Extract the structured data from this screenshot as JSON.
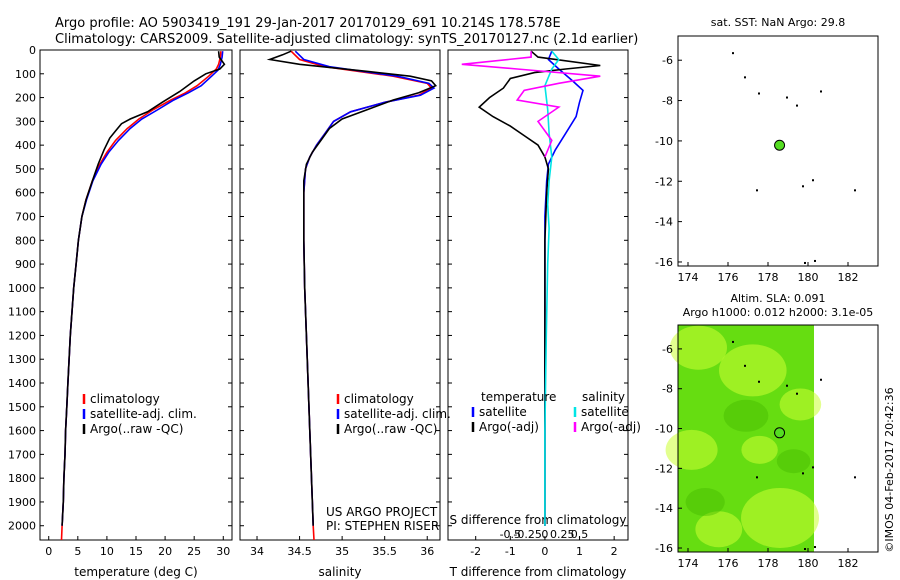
{
  "title": {
    "line1": "Argo profile: AO 5903419_191 29-Jan-2017 20170129_691 10.214S 178.578E",
    "line2": "Climatology: CARS2009. Satellite-adjusted climatology: synTS_20170127.nc (2.1d earlier)"
  },
  "colors": {
    "clim": "#ff0000",
    "sat": "#0000ff",
    "argo": "#000000",
    "sat_salt": "#00e5e5",
    "argo_salt": "#ff00ff",
    "marker": "#55dd22",
    "sla_base": "#66dd11",
    "sla_light": "#ccff33"
  },
  "stamp": "©IMOS 04-Feb-2017 20:42:36",
  "depth_axis": {
    "ticks": [
      0,
      100,
      200,
      300,
      400,
      500,
      600,
      700,
      800,
      900,
      1000,
      1100,
      1200,
      1300,
      1400,
      1500,
      1600,
      1700,
      1800,
      1900,
      2000
    ],
    "range": [
      0,
      2060
    ]
  },
  "chart_data": [
    {
      "id": "temperature",
      "type": "line",
      "xlabel": "temperature (deg C)",
      "xlim": [
        -1.5,
        31.5
      ],
      "xticks": [
        0,
        5,
        10,
        15,
        20,
        25,
        30
      ],
      "ylim": [
        0,
        2060
      ],
      "ylabel": "depth",
      "legend": [
        "climatology",
        "satellite-adj. clim.",
        "Argo(..raw -QC)"
      ],
      "series": [
        {
          "name": "climatology",
          "color": "#ff0000",
          "points": [
            [
              29.6,
              5
            ],
            [
              29.5,
              30
            ],
            [
              29.2,
              60
            ],
            [
              28.8,
              80
            ],
            [
              27.5,
              110
            ],
            [
              25.5,
              150
            ],
            [
              23.5,
              180
            ],
            [
              21.0,
              210
            ],
            [
              18.0,
              250
            ],
            [
              15.5,
              290
            ],
            [
              13.5,
              330
            ],
            [
              11.5,
              380
            ],
            [
              10.0,
              430
            ],
            [
              8.8,
              480
            ],
            [
              7.5,
              550
            ],
            [
              6.4,
              630
            ],
            [
              5.7,
              700
            ],
            [
              5.1,
              800
            ],
            [
              4.7,
              900
            ],
            [
              4.3,
              1000
            ],
            [
              4.0,
              1100
            ],
            [
              3.7,
              1200
            ],
            [
              3.5,
              1300
            ],
            [
              3.3,
              1400
            ],
            [
              3.1,
              1500
            ],
            [
              2.9,
              1600
            ],
            [
              2.8,
              1700
            ],
            [
              2.6,
              1800
            ],
            [
              2.5,
              1900
            ],
            [
              2.3,
              2000
            ],
            [
              2.2,
              2060
            ]
          ]
        },
        {
          "name": "satellite-adj. clim.",
          "color": "#0000ff",
          "points": [
            [
              29.9,
              5
            ],
            [
              29.8,
              30
            ],
            [
              29.5,
              60
            ],
            [
              29.1,
              85
            ],
            [
              28.0,
              110
            ],
            [
              26.2,
              150
            ],
            [
              24.0,
              180
            ],
            [
              21.5,
              210
            ],
            [
              18.8,
              250
            ],
            [
              16.0,
              290
            ],
            [
              14.0,
              330
            ],
            [
              12.0,
              380
            ],
            [
              10.3,
              430
            ],
            [
              9.0,
              480
            ],
            [
              7.6,
              550
            ],
            [
              6.5,
              630
            ],
            [
              5.7,
              700
            ],
            [
              5.1,
              800
            ],
            [
              4.7,
              900
            ],
            [
              4.3,
              1000
            ],
            [
              4.0,
              1100
            ],
            [
              3.7,
              1200
            ],
            [
              3.5,
              1300
            ],
            [
              3.3,
              1400
            ],
            [
              3.1,
              1500
            ],
            [
              2.9,
              1600
            ],
            [
              2.8,
              1700
            ],
            [
              2.6,
              1800
            ],
            [
              2.5,
              1900
            ],
            [
              2.3,
              2000
            ]
          ]
        },
        {
          "name": "Argo(..raw -QC)",
          "color": "#000000",
          "points": [
            [
              29.2,
              5
            ],
            [
              29.3,
              30
            ],
            [
              30.2,
              60
            ],
            [
              29.4,
              80
            ],
            [
              27.0,
              100
            ],
            [
              25.0,
              130
            ],
            [
              22.5,
              175
            ],
            [
              19.5,
              220
            ],
            [
              17.0,
              260
            ],
            [
              14.0,
              290
            ],
            [
              12.5,
              310
            ],
            [
              11.5,
              340
            ],
            [
              10.5,
              370
            ],
            [
              9.5,
              420
            ],
            [
              8.5,
              480
            ],
            [
              7.5,
              550
            ],
            [
              6.4,
              630
            ],
            [
              5.7,
              700
            ],
            [
              5.1,
              800
            ],
            [
              4.7,
              900
            ],
            [
              4.3,
              1000
            ],
            [
              4.0,
              1100
            ],
            [
              3.7,
              1200
            ],
            [
              3.5,
              1300
            ],
            [
              3.3,
              1400
            ],
            [
              3.1,
              1500
            ],
            [
              2.9,
              1600
            ],
            [
              2.8,
              1700
            ],
            [
              2.6,
              1800
            ],
            [
              2.5,
              1900
            ],
            [
              2.3,
              2000
            ]
          ]
        }
      ]
    },
    {
      "id": "salinity",
      "type": "line",
      "xlabel": "salinity",
      "xlim": [
        33.8,
        36.15
      ],
      "xticks": [
        34,
        34.5,
        35,
        35.5,
        36
      ],
      "ylim": [
        0,
        2060
      ],
      "legend": [
        "climatology",
        "satellite-adj. clim.",
        "Argo(..raw -QC)"
      ],
      "annotation": [
        "US ARGO PROJECT",
        "PI: STEPHEN RISER"
      ],
      "series": [
        {
          "name": "climatology",
          "color": "#ff0000",
          "points": [
            [
              34.4,
              5
            ],
            [
              34.5,
              40
            ],
            [
              34.8,
              70
            ],
            [
              35.6,
              110
            ],
            [
              36.0,
              140
            ],
            [
              36.05,
              160
            ],
            [
              35.9,
              190
            ],
            [
              35.5,
              220
            ],
            [
              35.1,
              260
            ],
            [
              34.9,
              300
            ],
            [
              34.8,
              350
            ],
            [
              34.7,
              400
            ],
            [
              34.62,
              450
            ],
            [
              34.57,
              500
            ],
            [
              34.55,
              600
            ],
            [
              34.55,
              800
            ],
            [
              34.56,
              1000
            ],
            [
              34.58,
              1200
            ],
            [
              34.6,
              1400
            ],
            [
              34.62,
              1600
            ],
            [
              34.64,
              1800
            ],
            [
              34.66,
              2000
            ],
            [
              34.67,
              2060
            ]
          ]
        },
        {
          "name": "satellite-adj. clim.",
          "color": "#0000ff",
          "points": [
            [
              34.45,
              5
            ],
            [
              34.55,
              40
            ],
            [
              34.85,
              70
            ],
            [
              35.65,
              110
            ],
            [
              36.02,
              140
            ],
            [
              36.08,
              160
            ],
            [
              35.92,
              190
            ],
            [
              35.5,
              220
            ],
            [
              35.1,
              260
            ],
            [
              34.9,
              300
            ],
            [
              34.8,
              350
            ],
            [
              34.7,
              400
            ],
            [
              34.62,
              450
            ],
            [
              34.57,
              500
            ],
            [
              34.55,
              600
            ],
            [
              34.55,
              800
            ],
            [
              34.56,
              1000
            ],
            [
              34.58,
              1200
            ],
            [
              34.6,
              1400
            ],
            [
              34.62,
              1600
            ],
            [
              34.64,
              1800
            ],
            [
              34.66,
              2000
            ]
          ]
        },
        {
          "name": "Argo(..raw -QC)",
          "color": "#000000",
          "points": [
            [
              34.4,
              5
            ],
            [
              34.3,
              20
            ],
            [
              34.15,
              40
            ],
            [
              34.5,
              60
            ],
            [
              35.3,
              90
            ],
            [
              35.8,
              110
            ],
            [
              36.05,
              130
            ],
            [
              36.1,
              150
            ],
            [
              35.9,
              180
            ],
            [
              35.6,
              210
            ],
            [
              35.3,
              250
            ],
            [
              35.0,
              290
            ],
            [
              34.85,
              330
            ],
            [
              34.75,
              380
            ],
            [
              34.65,
              430
            ],
            [
              34.58,
              480
            ],
            [
              34.55,
              550
            ],
            [
              34.55,
              800
            ],
            [
              34.56,
              1000
            ],
            [
              34.58,
              1200
            ],
            [
              34.6,
              1400
            ],
            [
              34.62,
              1600
            ],
            [
              34.64,
              1800
            ],
            [
              34.66,
              2000
            ]
          ]
        }
      ]
    },
    {
      "id": "differences",
      "type": "line",
      "xlabel": "T difference from climatology",
      "xlabel_top": "S difference from climatology",
      "xlim": [
        -2.8,
        2.4
      ],
      "xticks": [
        -2,
        -1,
        0,
        1,
        2
      ],
      "xticks_s": [
        -0.5,
        -0.25,
        0,
        0.25,
        0.5
      ],
      "xticks_s_labels": [
        "-0.5",
        "-0.25",
        "0",
        "0.25",
        "0.5"
      ],
      "ylim": [
        0,
        2060
      ],
      "legend_t_title": "temperature",
      "legend_s_title": "salinity",
      "legend_t": [
        "satellite",
        "Argo(-adj)"
      ],
      "legend_s": [
        "satellite",
        "Argo(-adj)"
      ],
      "series": [
        {
          "name": "T satellite",
          "color": "#0000ff",
          "points": [
            [
              0.2,
              5
            ],
            [
              0.1,
              40
            ],
            [
              0.4,
              80
            ],
            [
              0.8,
              130
            ],
            [
              1.1,
              170
            ],
            [
              1.0,
              220
            ],
            [
              0.9,
              280
            ],
            [
              0.6,
              350
            ],
            [
              0.3,
              420
            ],
            [
              0.1,
              480
            ],
            [
              0.05,
              550
            ],
            [
              0,
              700
            ],
            [
              0,
              1000
            ],
            [
              0,
              1500
            ],
            [
              0,
              2000
            ]
          ]
        },
        {
          "name": "T Argo(-adj)",
          "color": "#000000",
          "points": [
            [
              -0.4,
              5
            ],
            [
              -0.2,
              30
            ],
            [
              1.6,
              65
            ],
            [
              0.6,
              80
            ],
            [
              -0.3,
              95
            ],
            [
              -1.0,
              120
            ],
            [
              -1.2,
              160
            ],
            [
              -1.6,
              200
            ],
            [
              -1.9,
              240
            ],
            [
              -1.5,
              280
            ],
            [
              -1.0,
              320
            ],
            [
              -0.6,
              360
            ],
            [
              -0.2,
              400
            ],
            [
              0,
              450
            ],
            [
              0.1,
              500
            ],
            [
              0.05,
              600
            ],
            [
              0,
              800
            ],
            [
              0,
              1200
            ],
            [
              0,
              1600
            ],
            [
              0,
              2000
            ]
          ]
        },
        {
          "name": "S satellite",
          "color": "#00e5e5",
          "points": [
            [
              0.05,
              5
            ],
            [
              0.1,
              40
            ],
            [
              0.05,
              80
            ],
            [
              0,
              150
            ],
            [
              0.02,
              250
            ],
            [
              0.03,
              350
            ],
            [
              0.05,
              450
            ],
            [
              0.03,
              550
            ],
            [
              0.02,
              650
            ],
            [
              0.03,
              750
            ],
            [
              0.02,
              900
            ],
            [
              0.01,
              1200
            ],
            [
              0,
              1600
            ],
            [
              0,
              2000
            ]
          ]
        },
        {
          "name": "S Argo(-adj)",
          "color": "#ff00ff",
          "points": [
            [
              -0.1,
              5
            ],
            [
              -0.1,
              30
            ],
            [
              -0.6,
              60
            ],
            [
              -0.2,
              80
            ],
            [
              0.4,
              110
            ],
            [
              0.1,
              140
            ],
            [
              -0.15,
              170
            ],
            [
              -0.2,
              210
            ],
            [
              0.1,
              240
            ],
            [
              -0.05,
              300
            ],
            [
              0,
              340
            ],
            [
              0.05,
              380
            ],
            [
              0,
              450
            ]
          ]
        }
      ]
    },
    {
      "id": "sst_map",
      "type": "scatter",
      "title": "sat. SST: NaN Argo: 29.8",
      "xlim": [
        173.5,
        183.5
      ],
      "ylim": [
        -16.2,
        -4.8
      ],
      "xticks": [
        174,
        176,
        178,
        180,
        182
      ],
      "yticks": [
        -6,
        -8,
        -10,
        -12,
        -14,
        -16
      ],
      "marker": {
        "lon": 178.578,
        "lat": -10.214
      }
    },
    {
      "id": "sla_map",
      "type": "heatmap",
      "title": "Altim. SLA: 0.091",
      "subtitle": "Argo h1000: 0.012 h2000: 3.1e-05",
      "xlim": [
        173.5,
        183.5
      ],
      "ylim": [
        -16.2,
        -4.8
      ],
      "data_lon_max": 180.3,
      "xticks": [
        174,
        176,
        178,
        180,
        182
      ],
      "yticks": [
        -6,
        -8,
        -10,
        -12,
        -14,
        -16
      ],
      "marker": {
        "lon": 178.578,
        "lat": -10.214
      }
    }
  ]
}
